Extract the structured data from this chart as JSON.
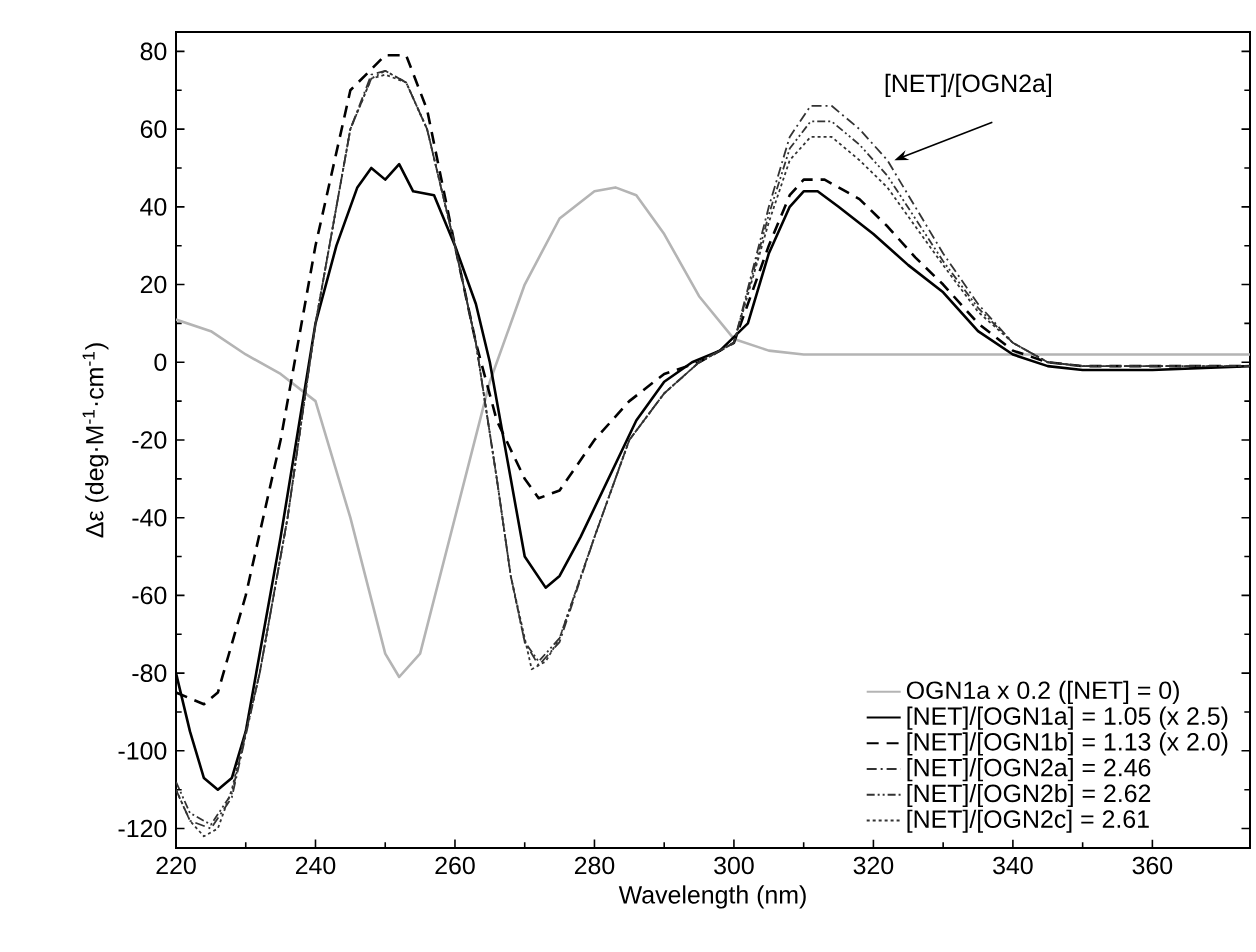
{
  "chart_data": {
    "type": "line",
    "xlabel": "Wavelength (nm)",
    "ylabel": "Δε (deg·M$^{-1}$·cm$^{-1}$)",
    "xlim": [
      220,
      374
    ],
    "ylim": [
      -125,
      85
    ],
    "xticks": [
      220,
      240,
      260,
      280,
      300,
      320,
      340,
      360
    ],
    "yticks": [
      -120,
      -100,
      -80,
      -60,
      -40,
      -20,
      0,
      20,
      40,
      60,
      80
    ],
    "legend": "bottom right",
    "grid": false,
    "annotations": [
      {
        "text": "[NET]/[OGN2a]",
        "x": 323,
        "y": 52
      }
    ],
    "series": [
      {
        "name": "OGN1a x 0.2 ([NET] = 0)",
        "color": "#b4b4b4",
        "line_style": "solid",
        "x": [
          220,
          225,
          230,
          235,
          240,
          245,
          250,
          252,
          255,
          260,
          265,
          270,
          275,
          280,
          283,
          286,
          290,
          295,
          300,
          305,
          310,
          320,
          374
        ],
        "values": [
          11,
          8,
          2,
          -3,
          -10,
          -40,
          -75,
          -81,
          -75,
          -40,
          -5,
          20,
          37,
          44,
          45,
          43,
          33,
          17,
          6,
          3,
          2,
          2,
          2
        ]
      },
      {
        "name": "[NET]/[OGN1a] = 1.05 (x 2.5)",
        "color": "#000000",
        "line_style": "solid",
        "x": [
          220,
          222,
          224,
          226,
          228,
          230,
          235,
          240,
          243,
          246,
          248,
          250,
          252,
          254,
          257,
          260,
          263,
          265,
          268,
          270,
          273,
          275,
          278,
          282,
          286,
          290,
          294,
          298,
          302,
          305,
          308,
          310,
          312,
          315,
          320,
          325,
          330,
          335,
          340,
          345,
          350,
          360,
          374
        ],
        "values": [
          -80,
          -95,
          -107,
          -110,
          -107,
          -95,
          -45,
          10,
          30,
          45,
          50,
          47,
          51,
          44,
          43,
          30,
          15,
          0,
          -30,
          -50,
          -58,
          -55,
          -45,
          -30,
          -15,
          -5,
          0,
          3,
          10,
          28,
          40,
          44,
          44,
          40,
          33,
          25,
          18,
          8,
          2,
          -1,
          -2,
          -2,
          -1
        ]
      },
      {
        "name": "[NET]/[OGN1b] = 1.13 (x 2.0)",
        "color": "#000000",
        "line_style": "dashed",
        "x": [
          220,
          224,
          226,
          230,
          235,
          240,
          245,
          250,
          253,
          256,
          260,
          263,
          266,
          270,
          272,
          275,
          280,
          285,
          290,
          295,
          300,
          305,
          308,
          310,
          313,
          318,
          322,
          326,
          330,
          335,
          340,
          345,
          350,
          360,
          374
        ],
        "values": [
          -85,
          -88,
          -85,
          -60,
          -20,
          30,
          70,
          79,
          79,
          65,
          30,
          5,
          -15,
          -30,
          -35,
          -33,
          -20,
          -10,
          -3,
          0,
          5,
          30,
          43,
          47,
          47,
          42,
          35,
          27,
          20,
          10,
          3,
          0,
          -1,
          -1,
          -1
        ]
      },
      {
        "name": "[NET]/[OGN2a] = 2.46",
        "color": "#333333",
        "line_style": "dashdot",
        "x": [
          220,
          222,
          225,
          228,
          232,
          236,
          240,
          245,
          248,
          250,
          253,
          256,
          260,
          263,
          266,
          268,
          270,
          272,
          275,
          280,
          285,
          290,
          295,
          300,
          305,
          308,
          311,
          314,
          318,
          322,
          326,
          330,
          335,
          340,
          345,
          350,
          374
        ],
        "values": [
          -110,
          -118,
          -120,
          -112,
          -80,
          -40,
          10,
          60,
          74,
          75,
          72,
          60,
          30,
          5,
          -30,
          -55,
          -72,
          -78,
          -72,
          -45,
          -20,
          -8,
          0,
          5,
          40,
          58,
          66,
          66,
          60,
          52,
          40,
          28,
          15,
          5,
          0,
          -1,
          -1
        ]
      },
      {
        "name": "[NET]/[OGN2b] = 2.62",
        "color": "#333333",
        "line_style": "dashdotdot",
        "x": [
          220,
          222,
          225,
          228,
          232,
          236,
          240,
          245,
          248,
          250,
          253,
          256,
          260,
          263,
          266,
          268,
          270,
          272,
          275,
          280,
          285,
          290,
          295,
          300,
          305,
          308,
          311,
          314,
          318,
          322,
          326,
          330,
          335,
          340,
          345,
          350,
          374
        ],
        "values": [
          -108,
          -116,
          -119,
          -111,
          -80,
          -40,
          10,
          60,
          73,
          75,
          72,
          60,
          30,
          5,
          -30,
          -55,
          -72,
          -77,
          -71,
          -45,
          -20,
          -8,
          0,
          5,
          38,
          55,
          62,
          62,
          56,
          48,
          37,
          26,
          14,
          5,
          0,
          -1,
          -1
        ]
      },
      {
        "name": "[NET]/[OGN2c] = 2.61",
        "color": "#333333",
        "line_style": "dotted",
        "x": [
          220,
          222,
          224,
          226,
          228,
          232,
          236,
          240,
          245,
          248,
          250,
          253,
          256,
          260,
          263,
          266,
          268,
          271,
          273,
          275,
          280,
          285,
          290,
          295,
          300,
          305,
          308,
          311,
          314,
          318,
          322,
          326,
          330,
          335,
          340,
          345,
          350,
          374
        ],
        "values": [
          -110,
          -118,
          -122,
          -120,
          -110,
          -80,
          -40,
          10,
          60,
          73,
          74,
          72,
          60,
          30,
          5,
          -30,
          -55,
          -79,
          -77,
          -71,
          -45,
          -20,
          -8,
          0,
          5,
          36,
          52,
          58,
          58,
          52,
          45,
          35,
          25,
          13,
          5,
          0,
          -1,
          -1
        ]
      }
    ]
  }
}
